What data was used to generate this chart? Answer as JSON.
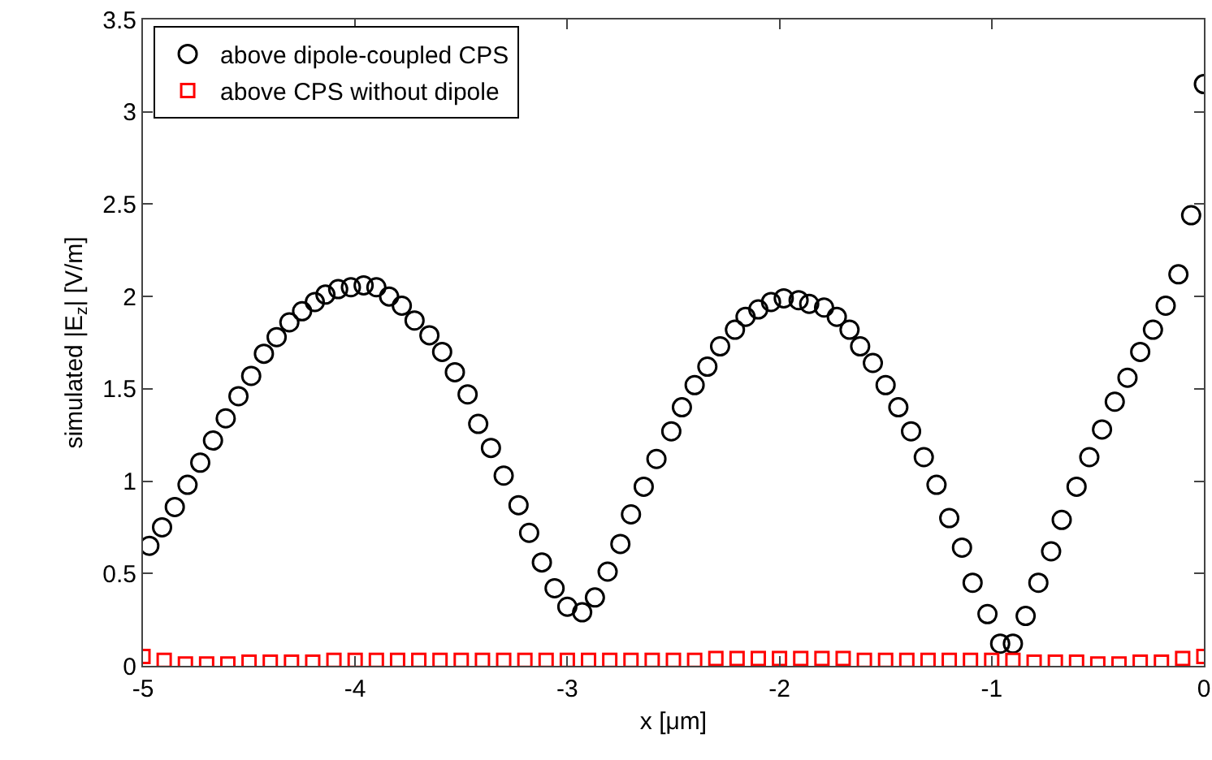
{
  "chart_data": {
    "type": "scatter",
    "xlabel": "x [μm]",
    "ylabel": "simulated |E$_{z}$| [V/m]",
    "xlim": [
      -5,
      0
    ],
    "xticks": [
      -5,
      -4,
      -3,
      -2,
      -1,
      0
    ],
    "ylim": [
      0,
      3.5
    ],
    "yticks": [
      0,
      0.5,
      1,
      1.5,
      2,
      2.5,
      3,
      3.5
    ],
    "grid": false,
    "legend": "top left",
    "series": [
      {
        "name": "above dipole-coupled CPS",
        "color": "#000000",
        "marker": "circle",
        "x": [
          -4.97,
          -4.91,
          -4.85,
          -4.79,
          -4.73,
          -4.67,
          -4.61,
          -4.55,
          -4.49,
          -4.43,
          -4.37,
          -4.31,
          -4.25,
          -4.19,
          -4.14,
          -4.08,
          -4.02,
          -3.96,
          -3.9,
          -3.84,
          -3.78,
          -3.72,
          -3.65,
          -3.59,
          -3.53,
          -3.47,
          -3.42,
          -3.36,
          -3.3,
          -3.23,
          -3.18,
          -3.12,
          -3.06,
          -3.0,
          -2.93,
          -2.87,
          -2.81,
          -2.75,
          -2.7,
          -2.64,
          -2.58,
          -2.51,
          -2.46,
          -2.4,
          -2.34,
          -2.28,
          -2.21,
          -2.16,
          -2.1,
          -2.04,
          -1.98,
          -1.91,
          -1.86,
          -1.79,
          -1.73,
          -1.67,
          -1.62,
          -1.56,
          -1.5,
          -1.44,
          -1.38,
          -1.32,
          -1.26,
          -1.2,
          -1.14,
          -1.09,
          -1.02,
          -0.96,
          -0.9,
          -0.84,
          -0.78,
          -0.72,
          -0.67,
          -0.6,
          -0.54,
          -0.48,
          -0.42,
          -0.36,
          -0.3,
          -0.24,
          -0.18,
          -0.12,
          -0.06,
          0.0
        ],
        "values": [
          0.65,
          0.75,
          0.86,
          0.98,
          1.1,
          1.22,
          1.34,
          1.46,
          1.57,
          1.69,
          1.78,
          1.86,
          1.92,
          1.97,
          2.01,
          2.04,
          2.05,
          2.06,
          2.05,
          2.0,
          1.95,
          1.87,
          1.79,
          1.7,
          1.59,
          1.47,
          1.31,
          1.18,
          1.03,
          0.87,
          0.72,
          0.56,
          0.42,
          0.32,
          0.29,
          0.37,
          0.51,
          0.66,
          0.82,
          0.97,
          1.12,
          1.27,
          1.4,
          1.52,
          1.62,
          1.73,
          1.82,
          1.89,
          1.93,
          1.97,
          1.99,
          1.98,
          1.96,
          1.94,
          1.89,
          1.82,
          1.73,
          1.64,
          1.52,
          1.4,
          1.27,
          1.13,
          0.98,
          0.8,
          0.64,
          0.45,
          0.28,
          0.12,
          0.12,
          0.27,
          0.45,
          0.62,
          0.79,
          0.97,
          1.13,
          1.28,
          1.43,
          1.56,
          1.7,
          1.82,
          1.95,
          2.12,
          2.44,
          3.15
        ]
      },
      {
        "name": "above CPS without dipole",
        "color": "#ff0000",
        "marker": "square",
        "x": [
          -5.0,
          -4.9,
          -4.8,
          -4.7,
          -4.6,
          -4.5,
          -4.4,
          -4.3,
          -4.2,
          -4.1,
          -4.0,
          -3.9,
          -3.8,
          -3.7,
          -3.6,
          -3.5,
          -3.4,
          -3.3,
          -3.2,
          -3.1,
          -3.0,
          -2.9,
          -2.8,
          -2.7,
          -2.6,
          -2.5,
          -2.4,
          -2.3,
          -2.2,
          -2.1,
          -2.0,
          -1.9,
          -1.8,
          -1.7,
          -1.6,
          -1.5,
          -1.4,
          -1.3,
          -1.2,
          -1.1,
          -1.0,
          -0.9,
          -0.8,
          -0.7,
          -0.6,
          -0.5,
          -0.4,
          -0.3,
          -0.2,
          -0.1,
          0.0
        ],
        "values": [
          0.05,
          0.03,
          0.01,
          0.01,
          0.01,
          0.02,
          0.02,
          0.02,
          0.02,
          0.03,
          0.03,
          0.03,
          0.03,
          0.03,
          0.03,
          0.03,
          0.03,
          0.03,
          0.03,
          0.03,
          0.03,
          0.03,
          0.03,
          0.03,
          0.03,
          0.03,
          0.03,
          0.04,
          0.04,
          0.04,
          0.04,
          0.04,
          0.04,
          0.04,
          0.03,
          0.03,
          0.03,
          0.03,
          0.03,
          0.03,
          0.03,
          0.03,
          0.02,
          0.02,
          0.02,
          0.01,
          0.01,
          0.02,
          0.02,
          0.04,
          0.05
        ]
      }
    ]
  }
}
